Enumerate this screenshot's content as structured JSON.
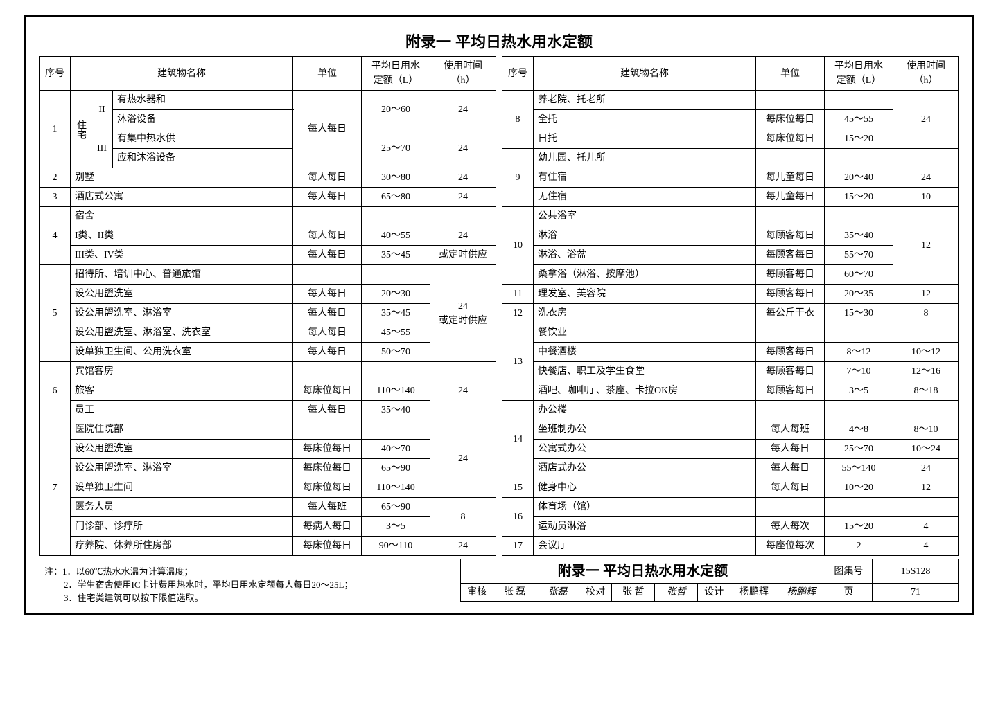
{
  "title": "附录一 平均日热水用水定额",
  "head": {
    "seq": "序号",
    "name": "建筑物名称",
    "unit": "单位",
    "quota": "平均日用水\n定额（L）",
    "time": "使用时间\n（h）"
  },
  "notes": {
    "lead": "注：",
    "n1": "1．以60℃热水水温为计算温度；",
    "n2": "2．学生宿舍使用IC卡计费用热水时，平均日用水定额每人每日20～25L；",
    "n3": "3．住宅类建筑可以按下限值选取。"
  },
  "left": [
    {
      "seq": "1",
      "nameCol": {
        "span": 2,
        "v": "住宅",
        "sub": [
          {
            "k": "II",
            "t1": "有热水器和",
            "t2": "沐浴设备",
            "unit": "每人每日",
            "q": "20～60",
            "h": "24",
            "unitRowSpan": 4
          },
          {
            "k": "III",
            "t1": "有集中热水供",
            "t2": "应和沐浴设备",
            "q": "25～70",
            "h": "24"
          }
        ]
      }
    },
    {
      "seq": "2",
      "name": "别墅",
      "unit": "每人每日",
      "q": "30～80",
      "h": "24"
    },
    {
      "seq": "3",
      "name": "酒店式公寓",
      "unit": "每人每日",
      "q": "65～80",
      "h": "24"
    },
    {
      "seq": "4",
      "name": "宿舍",
      "rows": [
        {
          "t": "I类、II类",
          "unit": "每人每日",
          "q": "40～55",
          "h": "24"
        },
        {
          "t": "III类、IV类",
          "unit": "每人每日",
          "q": "35～45",
          "h": "或定时供应"
        }
      ]
    },
    {
      "seq": "5",
      "name": "招待所、培训中心、普通旅馆",
      "rows": [
        {
          "t": "设公用盥洗室",
          "unit": "每人每日",
          "q": "20～30",
          "h": "24"
        },
        {
          "t": "设公用盥洗室、淋浴室",
          "unit": "每人每日",
          "q": "35～45",
          "hMerge": "或定时供应"
        },
        {
          "t": "设公用盥洗室、淋浴室、洗衣室",
          "unit": "每人每日",
          "q": "45～55"
        },
        {
          "t": "设单独卫生间、公用洗衣室",
          "unit": "每人每日",
          "q": "50～70"
        }
      ]
    },
    {
      "seq": "6",
      "name": "宾馆客房",
      "rows": [
        {
          "t": "旅客",
          "unit": "每床位每日",
          "q": "110～140",
          "h": "24"
        },
        {
          "t": "员工",
          "unit": "每人每日",
          "q": "35～40"
        }
      ]
    },
    {
      "seq": "7",
      "name": "医院住院部",
      "rows": [
        {
          "t": "设公用盥洗室",
          "unit": "每床位每日",
          "q": "40～70",
          "h3": "24"
        },
        {
          "t": "设公用盥洗室、淋浴室",
          "unit": "每床位每日",
          "q": "65～90"
        },
        {
          "t": "设单独卫生间",
          "unit": "每床位每日",
          "q": "110～140"
        },
        {
          "t": "医务人员",
          "unit": "每人每班",
          "q": "65～90",
          "h2": "8"
        },
        {
          "t": "门诊部、诊疗所",
          "unit": "每病人每日",
          "q": "3～5"
        },
        {
          "t": "疗养院、休养所住房部",
          "unit": "每床位每日",
          "q": "90～110",
          "h": "24"
        }
      ]
    }
  ],
  "right": [
    {
      "seq": "8",
      "name": "养老院、托老所",
      "rows": [
        {
          "t": "全托",
          "unit": "每床位每日",
          "q": "45～55",
          "h": "24"
        },
        {
          "t": "日托",
          "unit": "每床位每日",
          "q": "15～20"
        }
      ]
    },
    {
      "seq": "9",
      "name": "幼儿园、托儿所",
      "rows": [
        {
          "t": "有住宿",
          "unit": "每儿童每日",
          "q": "20～40",
          "h": "24"
        },
        {
          "t": "无住宿",
          "unit": "每儿童每日",
          "q": "15～20",
          "h": "10"
        }
      ]
    },
    {
      "seq": "10",
      "name": "公共浴室",
      "rows": [
        {
          "t": "淋浴",
          "unit": "每顾客每日",
          "q": "35～40",
          "h": "12"
        },
        {
          "t": "淋浴、浴盆",
          "unit": "每顾客每日",
          "q": "55～70"
        },
        {
          "t": "桑拿浴（淋浴、按摩池）",
          "unit": "每顾客每日",
          "q": "60～70"
        }
      ]
    },
    {
      "seq": "11",
      "name": "理发室、美容院",
      "unit": "每顾客每日",
      "q": "20～35",
      "h": "12"
    },
    {
      "seq": "12",
      "name": "洗衣房",
      "unit": "每公斤干衣",
      "q": "15～30",
      "h": "8"
    },
    {
      "seq": "13",
      "name": "餐饮业",
      "rows": [
        {
          "t": "中餐酒楼",
          "unit": "每顾客每日",
          "q": "8～12",
          "h": "10～12"
        },
        {
          "t": "快餐店、职工及学生食堂",
          "unit": "每顾客每日",
          "q": "7～10",
          "h": "12～16"
        },
        {
          "t": "酒吧、咖啡厅、茶座、卡拉OK房",
          "unit": "每顾客每日",
          "q": "3～5",
          "h": "8～18"
        }
      ]
    },
    {
      "seq": "14",
      "name": "办公楼",
      "rows": [
        {
          "t": "坐班制办公",
          "unit": "每人每班",
          "q": "4～8",
          "h": "8～10"
        },
        {
          "t": "公寓式办公",
          "unit": "每人每日",
          "q": "25～70",
          "h": "10～24"
        },
        {
          "t": "酒店式办公",
          "unit": "每人每日",
          "q": "55～140",
          "h": "24"
        }
      ]
    },
    {
      "seq": "15",
      "name": "健身中心",
      "unit": "每人每日",
      "q": "10～20",
      "h": "12"
    },
    {
      "seq": "16",
      "name": "体育场（馆）",
      "rows": [
        {
          "t": "运动员淋浴",
          "unit": "每人每次",
          "q": "15～20",
          "h": "4"
        }
      ]
    },
    {
      "seq": "17",
      "name": "会议厅",
      "unit": "每座位每次",
      "q": "2",
      "h": "4"
    }
  ],
  "btm": {
    "title": "附录一 平均日热水用水定额",
    "setLabel": "图集号",
    "set": "15S128",
    "rev": "审核",
    "revN": "张 磊",
    "revS": "张磊",
    "chk": "校对",
    "chkN": "张 哲",
    "chkS": "张哲",
    "des": "设计",
    "desN": "杨鹏辉",
    "desS": "杨鹏辉",
    "pgLabel": "页",
    "pg": "71"
  }
}
